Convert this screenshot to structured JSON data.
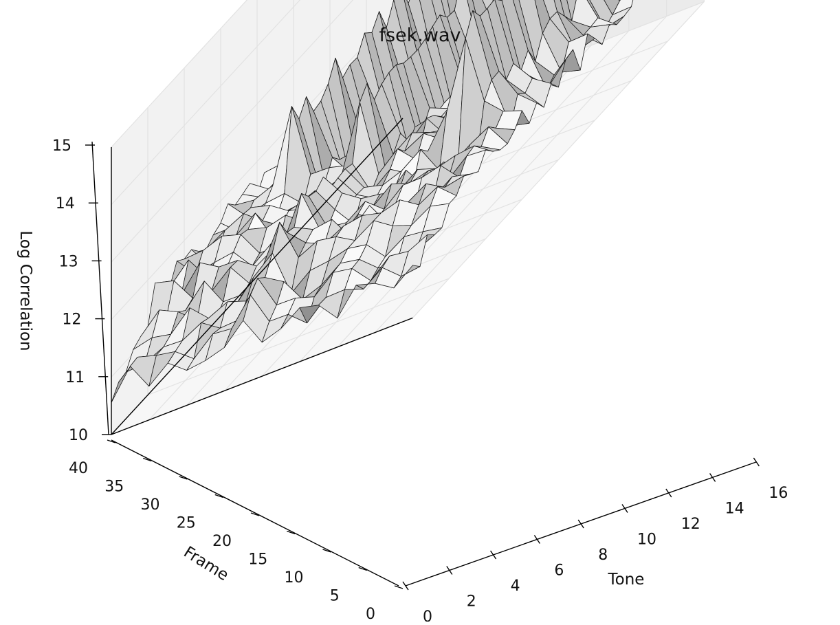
{
  "chart_data": {
    "type": "surface3d",
    "title": "fsek.wav",
    "xlabel": "Tone",
    "ylabel": "Frame",
    "zlabel": "Log Correlation",
    "x_ticks": [
      0,
      2,
      4,
      6,
      8,
      10,
      12,
      14,
      16
    ],
    "y_ticks": [
      0,
      5,
      10,
      15,
      20,
      25,
      30,
      35,
      40
    ],
    "z_ticks": [
      10,
      11,
      12,
      13,
      14,
      15
    ],
    "xlim": [
      0,
      16
    ],
    "ylim": [
      0,
      40
    ],
    "zlim": [
      10,
      15
    ],
    "grid": true,
    "colormap": "grayscale",
    "baseline": 11.4,
    "ridges": [
      {
        "tone": 3,
        "frame_range": [
          17,
          39
        ],
        "peak": 12.6
      },
      {
        "tone": 7,
        "frame_range": [
          16,
          39
        ],
        "peak": 12.7
      },
      {
        "tone": 7,
        "frame_range": [
          0,
          15
        ],
        "peak": 12.0
      },
      {
        "tone": 13,
        "frame_range": [
          15,
          39
        ],
        "peak": 13.3
      }
    ]
  }
}
